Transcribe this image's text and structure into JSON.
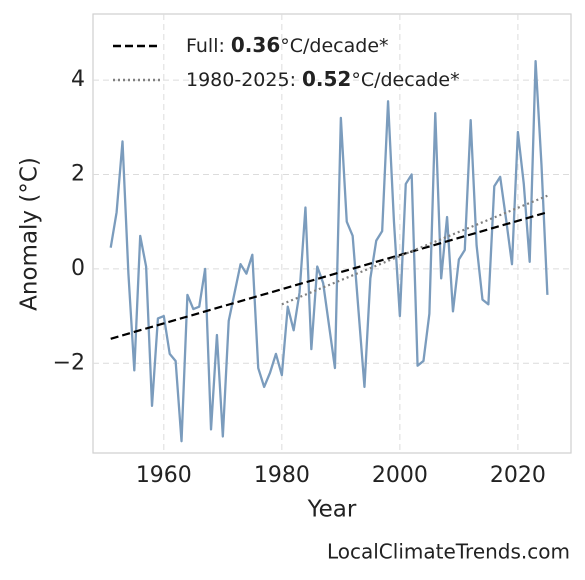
{
  "chart_data": {
    "type": "line",
    "xlabel": "Year",
    "ylabel": "Anomaly (°C)",
    "watermark": "LocalClimateTrends.com",
    "xlim": [
      1948,
      2029
    ],
    "ylim": [
      -3.9,
      5.4
    ],
    "xticks": [
      1960,
      1980,
      2000,
      2020
    ],
    "yticks": [
      {
        "value": -2,
        "label": "−2"
      },
      0,
      2,
      4
    ],
    "grid": true,
    "legend": "upper left",
    "series": [
      {
        "color": "#7b9cbd",
        "style": "solid",
        "x": [
          1951,
          1952,
          1953,
          1954,
          1955,
          1956,
          1957,
          1958,
          1959,
          1960,
          1961,
          1962,
          1963,
          1964,
          1965,
          1966,
          1967,
          1968,
          1969,
          1970,
          1971,
          1972,
          1973,
          1974,
          1975,
          1976,
          1977,
          1978,
          1979,
          1980,
          1981,
          1982,
          1983,
          1984,
          1985,
          1986,
          1987,
          1988,
          1989,
          1990,
          1991,
          1992,
          1993,
          1994,
          1995,
          1996,
          1997,
          1998,
          1999,
          2000,
          2001,
          2002,
          2003,
          2004,
          2005,
          2006,
          2007,
          2008,
          2009,
          2010,
          2011,
          2012,
          2013,
          2014,
          2015,
          2016,
          2017,
          2018,
          2019,
          2020,
          2021,
          2022,
          2023,
          2024,
          2025
        ],
        "values": [
          0.45,
          1.2,
          2.7,
          -0.1,
          -2.15,
          0.7,
          0.05,
          -2.9,
          -1.05,
          -1.0,
          -1.8,
          -1.95,
          -3.65,
          -0.55,
          -0.85,
          -0.8,
          0.0,
          -3.4,
          -1.4,
          -3.55,
          -1.1,
          -0.5,
          0.1,
          -0.1,
          0.3,
          -2.1,
          -2.5,
          -2.2,
          -1.8,
          -2.25,
          -0.8,
          -1.3,
          -0.5,
          1.3,
          -1.7,
          0.05,
          -0.3,
          -1.2,
          -2.1,
          3.2,
          1.0,
          0.7,
          -0.9,
          -2.5,
          -0.2,
          0.6,
          0.8,
          3.55,
          1.0,
          -1.0,
          1.8,
          2.0,
          -2.05,
          -1.95,
          -0.95,
          3.3,
          -0.2,
          1.1,
          -0.9,
          0.2,
          0.4,
          3.15,
          0.5,
          -0.65,
          -0.75,
          1.75,
          1.95,
          1.05,
          0.1,
          2.9,
          1.8,
          0.15,
          4.4,
          2.2,
          -0.55
        ]
      },
      {
        "name": "Full:",
        "rate": 0.36,
        "unit": "°C/decade*",
        "color": "#000000",
        "style": "dashed",
        "x": [
          1951,
          2025
        ],
        "values": [
          -1.48,
          1.2
        ]
      },
      {
        "name": "1980-2025:",
        "rate": 0.52,
        "unit": "°C/decade*",
        "color": "#808080",
        "style": "dotted",
        "x": [
          1980,
          2025
        ],
        "values": [
          -0.75,
          1.55
        ]
      }
    ]
  }
}
